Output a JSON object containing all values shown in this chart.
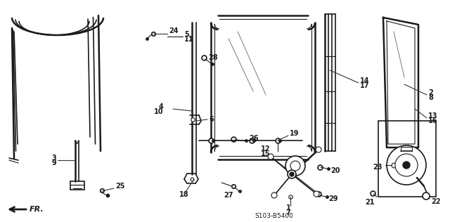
{
  "fig_width": 6.4,
  "fig_height": 3.16,
  "dpi": 100,
  "bg_color": "#ffffff",
  "line_color": "#1a1a1a",
  "text_color": "#1a1a1a",
  "diagram_code_text": "S103-B5400"
}
